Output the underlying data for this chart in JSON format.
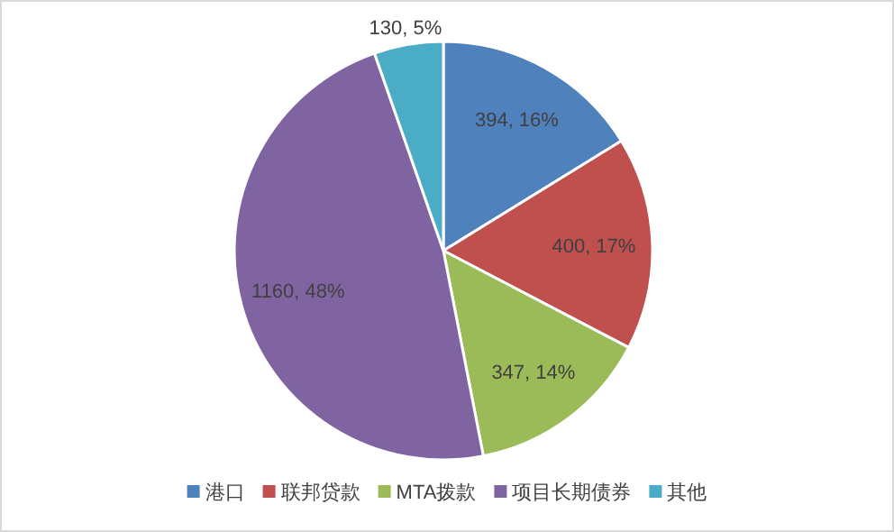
{
  "chart_data": {
    "type": "pie",
    "categories": [
      "港口",
      "联邦贷款",
      "MTA拨款",
      "项目长期债券",
      "其他"
    ],
    "values": [
      394,
      400,
      347,
      1160,
      130
    ],
    "value_labels": [
      "394, 16%",
      "400, 17%",
      "347, 14%",
      "1160, 48%",
      "130, 5%"
    ],
    "colors": [
      "#4f81bd",
      "#c0504d",
      "#9bbb59",
      "#8064a2",
      "#4bacc6"
    ],
    "legend": "bottom"
  }
}
